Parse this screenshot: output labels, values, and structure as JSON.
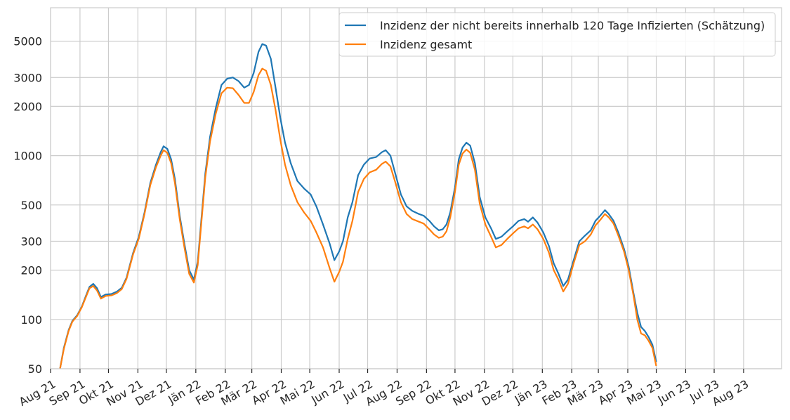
{
  "chart_data": {
    "type": "line",
    "title": "",
    "xlabel": "",
    "ylabel": "",
    "y_scale": "log",
    "ylim": [
      50,
      8000
    ],
    "xlim": [
      "2021-08-01",
      "2023-09-10"
    ],
    "grid": true,
    "legend_position": "top-right",
    "y_ticks": [
      {
        "value": 50,
        "label": "50"
      },
      {
        "value": 100,
        "label": "100"
      },
      {
        "value": 200,
        "label": "200"
      },
      {
        "value": 300,
        "label": "300"
      },
      {
        "value": 500,
        "label": "500"
      },
      {
        "value": 1000,
        "label": "1000"
      },
      {
        "value": 2000,
        "label": "2000"
      },
      {
        "value": 3000,
        "label": "3000"
      },
      {
        "value": 5000,
        "label": "5000"
      }
    ],
    "x_ticks": [
      {
        "date": "2021-08-01",
        "label": "Aug 21"
      },
      {
        "date": "2021-09-01",
        "label": "Sep 21"
      },
      {
        "date": "2021-10-01",
        "label": "Okt 21"
      },
      {
        "date": "2021-11-01",
        "label": "Nov 21"
      },
      {
        "date": "2021-12-01",
        "label": "Dez 21"
      },
      {
        "date": "2022-01-01",
        "label": "Jän 22"
      },
      {
        "date": "2022-02-01",
        "label": "Feb 22"
      },
      {
        "date": "2022-03-01",
        "label": "Mär 22"
      },
      {
        "date": "2022-04-01",
        "label": "Apr 22"
      },
      {
        "date": "2022-05-01",
        "label": "Mai 22"
      },
      {
        "date": "2022-06-01",
        "label": "Jun 22"
      },
      {
        "date": "2022-07-01",
        "label": "Jul 22"
      },
      {
        "date": "2022-08-01",
        "label": "Aug 22"
      },
      {
        "date": "2022-09-01",
        "label": "Sep 22"
      },
      {
        "date": "2022-10-01",
        "label": "Okt 22"
      },
      {
        "date": "2022-11-01",
        "label": "Nov 22"
      },
      {
        "date": "2022-12-01",
        "label": "Dez 22"
      },
      {
        "date": "2023-01-01",
        "label": "Jän 23"
      },
      {
        "date": "2023-02-01",
        "label": "Feb 23"
      },
      {
        "date": "2023-03-01",
        "label": "Mär 23"
      },
      {
        "date": "2023-04-01",
        "label": "Apr 23"
      },
      {
        "date": "2023-05-01",
        "label": "Mai 23"
      },
      {
        "date": "2023-06-01",
        "label": "Jun 23"
      },
      {
        "date": "2023-07-01",
        "label": "Jul 23"
      },
      {
        "date": "2023-08-01",
        "label": "Aug 23"
      }
    ],
    "series": [
      {
        "name": "Inzidenz der nicht bereits innerhalb 120 Tage Infizierten (Schätzung)",
        "color": "#1f77b4",
        "points": [
          [
            "2021-08-11",
            50
          ],
          [
            "2021-08-15",
            67
          ],
          [
            "2021-08-20",
            86
          ],
          [
            "2021-08-24",
            98
          ],
          [
            "2021-08-29",
            106
          ],
          [
            "2021-09-03",
            120
          ],
          [
            "2021-09-07",
            138
          ],
          [
            "2021-09-11",
            158
          ],
          [
            "2021-09-15",
            165
          ],
          [
            "2021-09-19",
            155
          ],
          [
            "2021-09-23",
            137
          ],
          [
            "2021-09-28",
            142
          ],
          [
            "2021-10-04",
            143
          ],
          [
            "2021-10-10",
            148
          ],
          [
            "2021-10-15",
            156
          ],
          [
            "2021-10-20",
            180
          ],
          [
            "2021-10-27",
            255
          ],
          [
            "2021-11-02",
            320
          ],
          [
            "2021-11-08",
            450
          ],
          [
            "2021-11-14",
            680
          ],
          [
            "2021-11-20",
            880
          ],
          [
            "2021-11-25",
            1050
          ],
          [
            "2021-11-28",
            1140
          ],
          [
            "2021-12-02",
            1100
          ],
          [
            "2021-12-06",
            950
          ],
          [
            "2021-12-10",
            720
          ],
          [
            "2021-12-15",
            430
          ],
          [
            "2021-12-20",
            290
          ],
          [
            "2021-12-25",
            200
          ],
          [
            "2021-12-30",
            175
          ],
          [
            "2022-01-03",
            225
          ],
          [
            "2022-01-07",
            420
          ],
          [
            "2022-01-11",
            780
          ],
          [
            "2022-01-16",
            1300
          ],
          [
            "2022-01-22",
            1950
          ],
          [
            "2022-01-28",
            2700
          ],
          [
            "2022-02-03",
            2950
          ],
          [
            "2022-02-09",
            3000
          ],
          [
            "2022-02-15",
            2850
          ],
          [
            "2022-02-21",
            2600
          ],
          [
            "2022-02-26",
            2700
          ],
          [
            "2022-03-03",
            3200
          ],
          [
            "2022-03-08",
            4300
          ],
          [
            "2022-03-12",
            4800
          ],
          [
            "2022-03-16",
            4700
          ],
          [
            "2022-03-21",
            3900
          ],
          [
            "2022-03-26",
            2600
          ],
          [
            "2022-03-31",
            1700
          ],
          [
            "2022-04-05",
            1200
          ],
          [
            "2022-04-11",
            900
          ],
          [
            "2022-04-18",
            700
          ],
          [
            "2022-04-25",
            630
          ],
          [
            "2022-05-02",
            580
          ],
          [
            "2022-05-08",
            490
          ],
          [
            "2022-05-15",
            380
          ],
          [
            "2022-05-22",
            290
          ],
          [
            "2022-05-27",
            230
          ],
          [
            "2022-06-01",
            260
          ],
          [
            "2022-06-05",
            300
          ],
          [
            "2022-06-10",
            420
          ],
          [
            "2022-06-15",
            520
          ],
          [
            "2022-06-21",
            760
          ],
          [
            "2022-06-27",
            880
          ],
          [
            "2022-07-03",
            960
          ],
          [
            "2022-07-10",
            980
          ],
          [
            "2022-07-16",
            1050
          ],
          [
            "2022-07-20",
            1080
          ],
          [
            "2022-07-25",
            1000
          ],
          [
            "2022-07-30",
            780
          ],
          [
            "2022-08-05",
            580
          ],
          [
            "2022-08-11",
            490
          ],
          [
            "2022-08-17",
            460
          ],
          [
            "2022-08-24",
            440
          ],
          [
            "2022-08-29",
            430
          ],
          [
            "2022-09-04",
            400
          ],
          [
            "2022-09-09",
            370
          ],
          [
            "2022-09-14",
            350
          ],
          [
            "2022-09-18",
            355
          ],
          [
            "2022-09-22",
            380
          ],
          [
            "2022-09-26",
            450
          ],
          [
            "2022-10-01",
            640
          ],
          [
            "2022-10-05",
            950
          ],
          [
            "2022-10-09",
            1120
          ],
          [
            "2022-10-13",
            1200
          ],
          [
            "2022-10-17",
            1150
          ],
          [
            "2022-10-22",
            900
          ],
          [
            "2022-10-27",
            560
          ],
          [
            "2022-11-02",
            420
          ],
          [
            "2022-11-08",
            360
          ],
          [
            "2022-11-13",
            310
          ],
          [
            "2022-11-19",
            320
          ],
          [
            "2022-11-25",
            345
          ],
          [
            "2022-12-01",
            370
          ],
          [
            "2022-12-07",
            400
          ],
          [
            "2022-12-13",
            410
          ],
          [
            "2022-12-17",
            395
          ],
          [
            "2022-12-22",
            420
          ],
          [
            "2022-12-27",
            390
          ],
          [
            "2023-01-02",
            340
          ],
          [
            "2023-01-08",
            280
          ],
          [
            "2023-01-13",
            220
          ],
          [
            "2023-01-18",
            190
          ],
          [
            "2023-01-23",
            160
          ],
          [
            "2023-01-28",
            175
          ],
          [
            "2023-02-03",
            230
          ],
          [
            "2023-02-09",
            300
          ],
          [
            "2023-02-15",
            325
          ],
          [
            "2023-02-21",
            350
          ],
          [
            "2023-02-26",
            400
          ],
          [
            "2023-03-03",
            430
          ],
          [
            "2023-03-08",
            465
          ],
          [
            "2023-03-12",
            440
          ],
          [
            "2023-03-17",
            400
          ],
          [
            "2023-03-22",
            340
          ],
          [
            "2023-03-28",
            270
          ],
          [
            "2023-04-02",
            210
          ],
          [
            "2023-04-07",
            145
          ],
          [
            "2023-04-11",
            110
          ],
          [
            "2023-04-15",
            90
          ],
          [
            "2023-04-19",
            85
          ],
          [
            "2023-04-23",
            78
          ],
          [
            "2023-04-27",
            70
          ],
          [
            "2023-05-01",
            55
          ]
        ]
      },
      {
        "name": "Inzidenz gesamt",
        "color": "#ff7f0e",
        "points": [
          [
            "2021-08-11",
            50
          ],
          [
            "2021-08-15",
            66
          ],
          [
            "2021-08-20",
            85
          ],
          [
            "2021-08-24",
            97
          ],
          [
            "2021-08-29",
            105
          ],
          [
            "2021-09-03",
            119
          ],
          [
            "2021-09-07",
            136
          ],
          [
            "2021-09-11",
            155
          ],
          [
            "2021-09-15",
            160
          ],
          [
            "2021-09-19",
            150
          ],
          [
            "2021-09-23",
            134
          ],
          [
            "2021-09-28",
            139
          ],
          [
            "2021-10-04",
            140
          ],
          [
            "2021-10-10",
            145
          ],
          [
            "2021-10-15",
            153
          ],
          [
            "2021-10-20",
            177
          ],
          [
            "2021-10-27",
            250
          ],
          [
            "2021-11-02",
            312
          ],
          [
            "2021-11-08",
            440
          ],
          [
            "2021-11-14",
            660
          ],
          [
            "2021-11-20",
            850
          ],
          [
            "2021-11-25",
            1000
          ],
          [
            "2021-11-28",
            1080
          ],
          [
            "2021-12-02",
            1040
          ],
          [
            "2021-12-06",
            900
          ],
          [
            "2021-12-10",
            680
          ],
          [
            "2021-12-15",
            410
          ],
          [
            "2021-12-20",
            275
          ],
          [
            "2021-12-25",
            190
          ],
          [
            "2021-12-30",
            168
          ],
          [
            "2022-01-03",
            215
          ],
          [
            "2022-01-07",
            400
          ],
          [
            "2022-01-11",
            740
          ],
          [
            "2022-01-16",
            1220
          ],
          [
            "2022-01-22",
            1800
          ],
          [
            "2022-01-28",
            2400
          ],
          [
            "2022-02-03",
            2600
          ],
          [
            "2022-02-09",
            2580
          ],
          [
            "2022-02-15",
            2350
          ],
          [
            "2022-02-21",
            2100
          ],
          [
            "2022-02-26",
            2100
          ],
          [
            "2022-03-03",
            2450
          ],
          [
            "2022-03-08",
            3100
          ],
          [
            "2022-03-12",
            3400
          ],
          [
            "2022-03-16",
            3300
          ],
          [
            "2022-03-21",
            2700
          ],
          [
            "2022-03-26",
            1900
          ],
          [
            "2022-03-31",
            1250
          ],
          [
            "2022-04-05",
            880
          ],
          [
            "2022-04-11",
            660
          ],
          [
            "2022-04-18",
            520
          ],
          [
            "2022-04-25",
            450
          ],
          [
            "2022-05-02",
            400
          ],
          [
            "2022-05-08",
            340
          ],
          [
            "2022-05-15",
            275
          ],
          [
            "2022-05-22",
            205
          ],
          [
            "2022-05-27",
            170
          ],
          [
            "2022-06-01",
            195
          ],
          [
            "2022-06-05",
            225
          ],
          [
            "2022-06-10",
            310
          ],
          [
            "2022-06-15",
            400
          ],
          [
            "2022-06-21",
            600
          ],
          [
            "2022-06-27",
            720
          ],
          [
            "2022-07-03",
            790
          ],
          [
            "2022-07-10",
            820
          ],
          [
            "2022-07-16",
            890
          ],
          [
            "2022-07-20",
            920
          ],
          [
            "2022-07-25",
            860
          ],
          [
            "2022-07-30",
            690
          ],
          [
            "2022-08-05",
            520
          ],
          [
            "2022-08-11",
            440
          ],
          [
            "2022-08-17",
            410
          ],
          [
            "2022-08-24",
            395
          ],
          [
            "2022-08-29",
            385
          ],
          [
            "2022-09-04",
            355
          ],
          [
            "2022-09-09",
            330
          ],
          [
            "2022-09-14",
            315
          ],
          [
            "2022-09-18",
            320
          ],
          [
            "2022-09-22",
            345
          ],
          [
            "2022-09-26",
            420
          ],
          [
            "2022-10-01",
            600
          ],
          [
            "2022-10-05",
            880
          ],
          [
            "2022-10-09",
            1030
          ],
          [
            "2022-10-13",
            1090
          ],
          [
            "2022-10-17",
            1040
          ],
          [
            "2022-10-22",
            820
          ],
          [
            "2022-10-27",
            510
          ],
          [
            "2022-11-02",
            380
          ],
          [
            "2022-11-08",
            320
          ],
          [
            "2022-11-13",
            275
          ],
          [
            "2022-11-19",
            285
          ],
          [
            "2022-11-25",
            310
          ],
          [
            "2022-12-01",
            335
          ],
          [
            "2022-12-07",
            360
          ],
          [
            "2022-12-13",
            370
          ],
          [
            "2022-12-17",
            360
          ],
          [
            "2022-12-22",
            380
          ],
          [
            "2022-12-27",
            355
          ],
          [
            "2023-01-02",
            310
          ],
          [
            "2023-01-08",
            255
          ],
          [
            "2023-01-13",
            200
          ],
          [
            "2023-01-18",
            175
          ],
          [
            "2023-01-23",
            148
          ],
          [
            "2023-01-28",
            165
          ],
          [
            "2023-02-03",
            220
          ],
          [
            "2023-02-09",
            285
          ],
          [
            "2023-02-15",
            300
          ],
          [
            "2023-02-21",
            330
          ],
          [
            "2023-02-26",
            375
          ],
          [
            "2023-03-03",
            405
          ],
          [
            "2023-03-08",
            440
          ],
          [
            "2023-03-12",
            420
          ],
          [
            "2023-03-17",
            385
          ],
          [
            "2023-03-22",
            325
          ],
          [
            "2023-03-28",
            260
          ],
          [
            "2023-04-02",
            200
          ],
          [
            "2023-04-07",
            140
          ],
          [
            "2023-04-11",
            100
          ],
          [
            "2023-04-15",
            82
          ],
          [
            "2023-04-19",
            80
          ],
          [
            "2023-04-23",
            74
          ],
          [
            "2023-04-27",
            67
          ],
          [
            "2023-05-01",
            52
          ]
        ]
      }
    ]
  }
}
